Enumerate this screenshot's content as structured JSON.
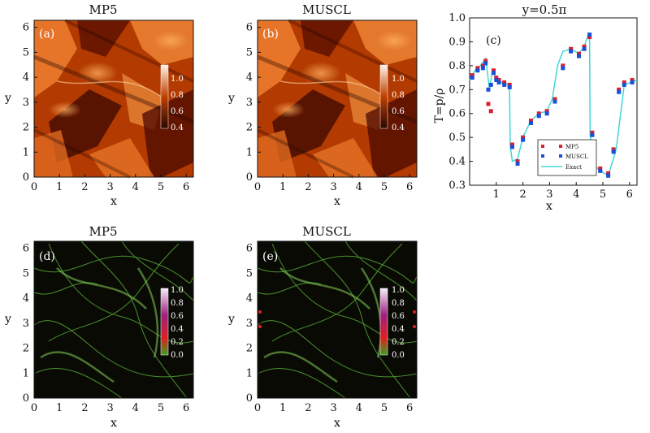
{
  "figure": {
    "panels": [
      {
        "id": "a",
        "label": "(a)",
        "title": "MP5",
        "kind": "density",
        "xlabel": "x",
        "ylabel": "y",
        "cbar_ticks": [
          "1.0",
          "0.8",
          "0.6",
          "0.4"
        ]
      },
      {
        "id": "b",
        "label": "(b)",
        "title": "MUSCL",
        "kind": "density",
        "xlabel": "x",
        "ylabel": "y",
        "cbar_ticks": [
          "1.0",
          "0.8",
          "0.6",
          "0.4"
        ]
      },
      {
        "id": "d",
        "label": "(d)",
        "title": "MP5",
        "kind": "current",
        "xlabel": "x",
        "ylabel": "y",
        "cbar_ticks": [
          "1.0",
          "0.8",
          "0.6",
          "0.4",
          "0.2",
          "0.0"
        ]
      },
      {
        "id": "e",
        "label": "(e)",
        "title": "MUSCL",
        "kind": "current",
        "xlabel": "x",
        "ylabel": "y",
        "cbar_ticks": [
          "1.0",
          "0.8",
          "0.6",
          "0.4",
          "0.2",
          "0.0"
        ]
      }
    ],
    "map_ticks": [
      "0",
      "1",
      "2",
      "3",
      "4",
      "5",
      "6"
    ]
  },
  "colors": {
    "density_dark": "#2a0600",
    "density_mid": "#b33a00",
    "density_light": "#f08030",
    "current_bg": "#0a0a05",
    "current_line": "#5fbf3a",
    "mp5_marker": "#d82030",
    "muscl_marker": "#1a4fd8",
    "exact_line": "#40d8d8"
  },
  "chart_data": {
    "type": "line",
    "label": "(c)",
    "title": "y=0.5π",
    "xlabel": "x",
    "ylabel": "T=p/ρ",
    "xlim": [
      0,
      6.28
    ],
    "ylim": [
      0.3,
      1.0
    ],
    "xticks": [
      "1",
      "2",
      "3",
      "4",
      "5",
      "6"
    ],
    "yticks": [
      "0.3",
      "0.4",
      "0.5",
      "0.6",
      "0.7",
      "0.8",
      "0.9",
      "1.0"
    ],
    "legend_position": "center-bottom",
    "series": [
      {
        "name": "MP5",
        "style": "markers",
        "x": [
          0.1,
          0.3,
          0.5,
          0.6,
          0.7,
          0.8,
          0.9,
          1.0,
          1.1,
          1.3,
          1.5,
          1.6,
          1.8,
          2.0,
          2.3,
          2.6,
          2.9,
          3.2,
          3.5,
          3.8,
          4.1,
          4.3,
          4.5,
          4.6,
          4.9,
          5.2,
          5.4,
          5.6,
          5.8,
          6.1
        ],
        "y": [
          0.76,
          0.79,
          0.8,
          0.82,
          0.64,
          0.61,
          0.78,
          0.75,
          0.74,
          0.73,
          0.72,
          0.47,
          0.4,
          0.5,
          0.57,
          0.6,
          0.61,
          0.66,
          0.8,
          0.87,
          0.85,
          0.88,
          0.92,
          0.52,
          0.37,
          0.35,
          0.45,
          0.7,
          0.73,
          0.74
        ]
      },
      {
        "name": "MUSCL",
        "style": "markers",
        "x": [
          0.1,
          0.3,
          0.5,
          0.6,
          0.7,
          0.8,
          0.9,
          1.0,
          1.1,
          1.3,
          1.5,
          1.6,
          1.8,
          2.0,
          2.3,
          2.6,
          2.9,
          3.2,
          3.5,
          3.8,
          4.1,
          4.3,
          4.5,
          4.6,
          4.9,
          5.2,
          5.4,
          5.6,
          5.8,
          6.1
        ],
        "y": [
          0.75,
          0.78,
          0.79,
          0.81,
          0.7,
          0.72,
          0.77,
          0.74,
          0.73,
          0.72,
          0.71,
          0.46,
          0.39,
          0.49,
          0.56,
          0.59,
          0.6,
          0.65,
          0.79,
          0.86,
          0.84,
          0.87,
          0.93,
          0.51,
          0.36,
          0.34,
          0.44,
          0.69,
          0.72,
          0.73
        ]
      },
      {
        "name": "Exact",
        "style": "line",
        "x": [
          0.0,
          0.2,
          0.4,
          0.6,
          0.75,
          0.85,
          1.0,
          1.2,
          1.45,
          1.5,
          1.52,
          1.6,
          1.8,
          2.0,
          2.3,
          2.6,
          2.9,
          3.1,
          3.3,
          3.5,
          3.8,
          4.1,
          4.3,
          4.45,
          4.5,
          4.52,
          4.7,
          4.9,
          5.2,
          5.5,
          5.8,
          6.28
        ],
        "y": [
          0.74,
          0.78,
          0.8,
          0.83,
          0.7,
          0.78,
          0.74,
          0.73,
          0.72,
          0.7,
          0.47,
          0.4,
          0.41,
          0.5,
          0.57,
          0.6,
          0.61,
          0.66,
          0.8,
          0.86,
          0.87,
          0.85,
          0.88,
          0.93,
          0.93,
          0.51,
          0.38,
          0.36,
          0.34,
          0.45,
          0.72,
          0.74
        ]
      }
    ]
  }
}
